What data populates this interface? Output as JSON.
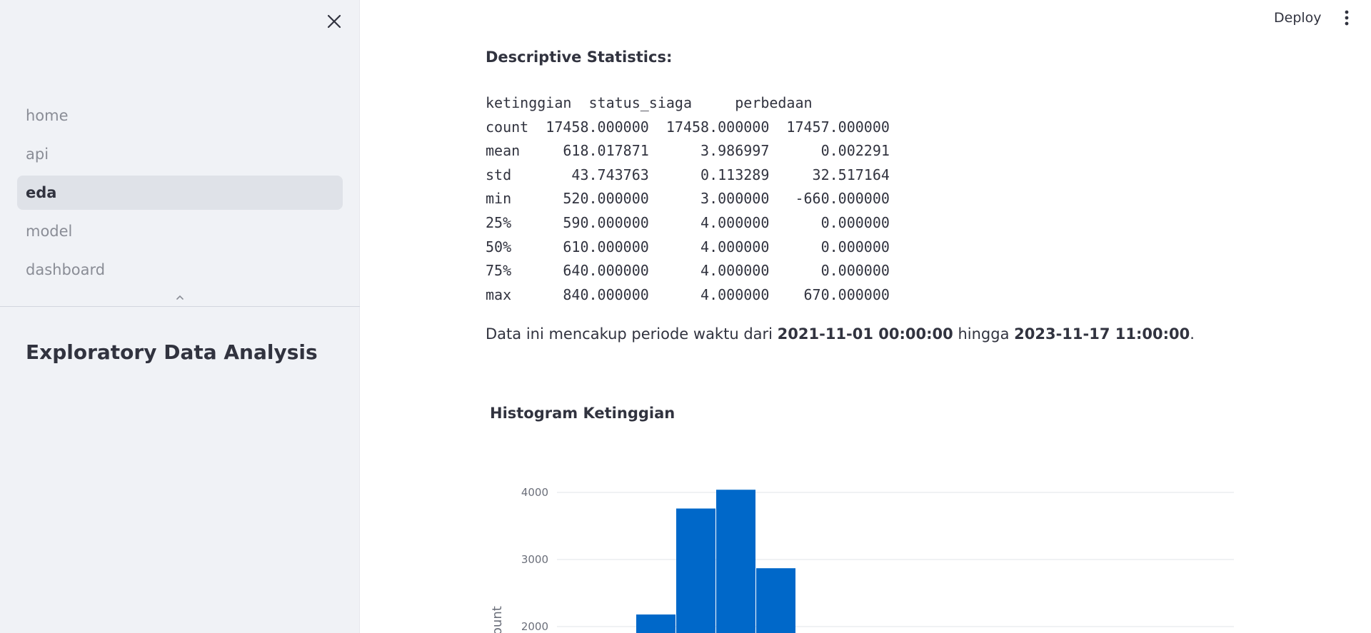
{
  "sidebar": {
    "nav_items": [
      {
        "label": "home"
      },
      {
        "label": "api"
      },
      {
        "label": "eda",
        "active": true
      },
      {
        "label": "model"
      },
      {
        "label": "dashboard"
      }
    ],
    "heading": "Exploratory Data Analysis"
  },
  "header": {
    "deploy_label": "Deploy"
  },
  "main": {
    "stats_title": "Descriptive Statistics:",
    "stats_table": "ketinggian  status_siaga     perbedaan\ncount  17458.000000  17458.000000  17457.000000\nmean     618.017871      3.986997      0.002291\nstd       43.743763      0.113289     32.517164\nmin      520.000000      3.000000   -660.000000\n25%      590.000000      4.000000      0.000000\n50%      610.000000      4.000000      0.000000\n75%      640.000000      4.000000      0.000000\nmax      840.000000      4.000000    670.000000",
    "period": {
      "prefix": "Data ini mencakup periode waktu dari ",
      "start": "2021-11-01 00:00:00",
      "middle": " hingga ",
      "end": "2023-11-17 11:00:00",
      "suffix": "."
    },
    "histogram_title": "Histogram Ketinggian"
  },
  "chart_data": {
    "type": "bar",
    "title": "Histogram Ketinggian",
    "ylabel": "count",
    "y_ticks": [
      2000,
      3000,
      4000
    ],
    "bars": [
      {
        "value": 2180
      },
      {
        "value": 3760
      },
      {
        "value": 4040
      },
      {
        "value": 2870
      }
    ],
    "color": "#0068c9"
  }
}
